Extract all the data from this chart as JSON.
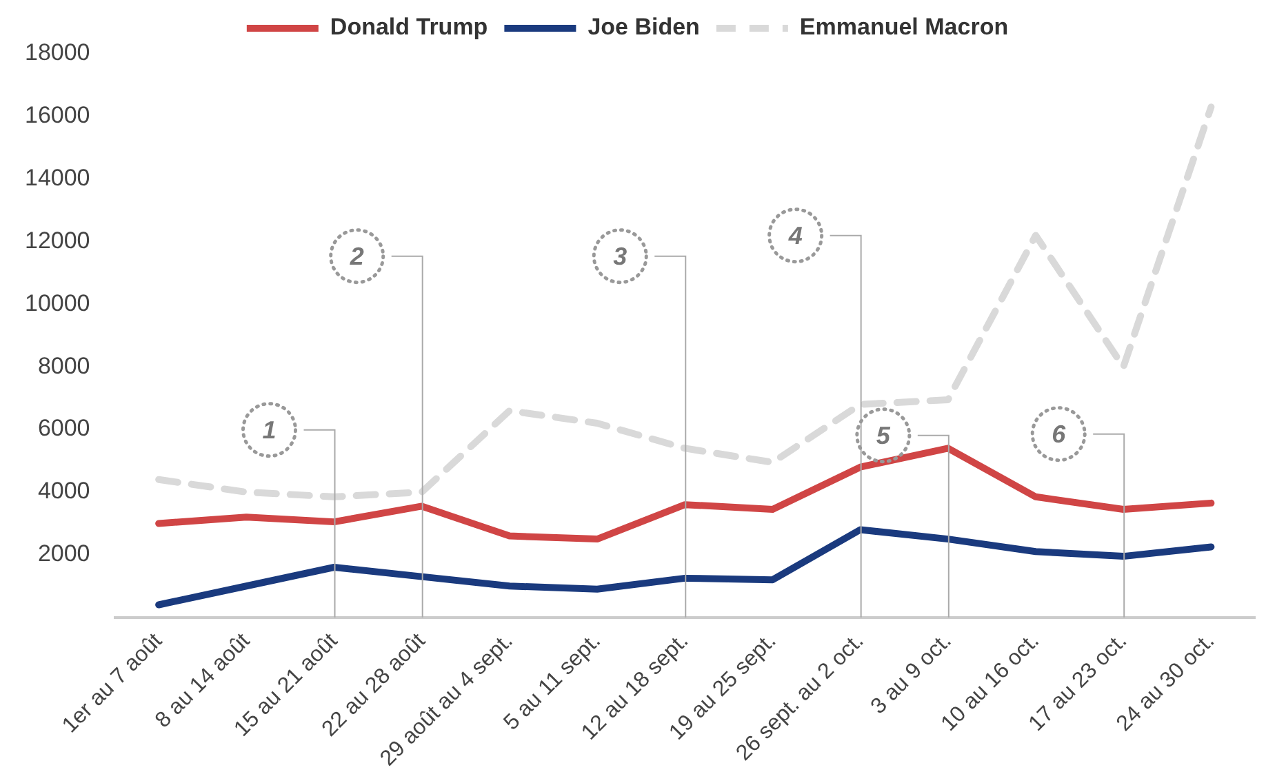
{
  "chart_data": {
    "type": "line",
    "categories": [
      "1er au 7 août",
      "8 au 14 août",
      "15 au 21 août",
      "22 au 28 août",
      "29 août au 4 sept.",
      "5 au 11 sept.",
      "12 au 18 sept.",
      "19 au 25 sept.",
      "26 sept. au 2 oct.",
      "3 au 9 oct.",
      "10 au 16 oct.",
      "17 au 23 oct.",
      "24 au 30 oct."
    ],
    "series": [
      {
        "name": "Donald Trump",
        "color": "#d04545",
        "line_style": "solid",
        "values": [
          3000,
          3200,
          3050,
          3550,
          2600,
          2500,
          3600,
          3450,
          4800,
          5400,
          3850,
          3450,
          3650
        ]
      },
      {
        "name": "Joe Biden",
        "color": "#1a3a7e",
        "line_style": "solid",
        "values": [
          400,
          1000,
          1600,
          1300,
          1000,
          900,
          1250,
          1200,
          2800,
          2500,
          2100,
          1950,
          2250
        ]
      },
      {
        "name": "Emmanuel Macron",
        "color": "#d9d9d9",
        "line_style": "dashed",
        "values": [
          4400,
          4000,
          3850,
          4000,
          6600,
          6200,
          5400,
          4950,
          6800,
          6950,
          12200,
          8000,
          16300
        ]
      }
    ],
    "ylim": [
      0,
      18000
    ],
    "yticks": [
      2000,
      4000,
      6000,
      8000,
      10000,
      12000,
      14000,
      16000,
      18000
    ],
    "grid": false,
    "legend": "top",
    "marker": "none",
    "ref_lines": [
      {
        "axis": "x",
        "value": "15 au 21 août",
        "label": "1"
      },
      {
        "axis": "x",
        "value": "22 au 28 août",
        "label": "2"
      },
      {
        "axis": "x",
        "value": "12 au 18 sept.",
        "label": "3"
      },
      {
        "axis": "x",
        "value": "26 sept. au 2 oct.",
        "label": "4"
      },
      {
        "axis": "x",
        "value": "3 au 9 oct.",
        "label": "5"
      },
      {
        "axis": "x",
        "value": "17 au 23 oct.",
        "label": "6"
      }
    ]
  }
}
